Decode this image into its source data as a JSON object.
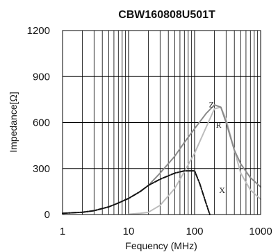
{
  "chart_data": {
    "type": "line",
    "title": "CBW160808U501T",
    "xlabel": "Fequency (MHz)",
    "ylabel": "Impedance[Ω]",
    "xscale": "log",
    "xlim": [
      1,
      1000
    ],
    "ylim": [
      0,
      1200
    ],
    "x_ticks": [
      "1",
      "10",
      "100",
      "1000"
    ],
    "y_ticks": [
      "0",
      "300",
      "600",
      "900",
      "1200"
    ],
    "grid": true,
    "legend": "none (curves labeled directly)",
    "series": [
      {
        "name": "Z",
        "color": "#8a8a8a",
        "style": "solid",
        "x": [
          1,
          2,
          3,
          5,
          7,
          10,
          15,
          20,
          30,
          50,
          70,
          100,
          150,
          200,
          250,
          300,
          400,
          500,
          700,
          1000
        ],
        "y": [
          8,
          15,
          25,
          50,
          75,
          105,
          150,
          190,
          270,
          380,
          470,
          560,
          660,
          715,
          700,
          600,
          420,
          330,
          240,
          180
        ]
      },
      {
        "name": "R",
        "color": "#bcbcbc",
        "style": "solid",
        "x": [
          10,
          15,
          20,
          30,
          50,
          70,
          100,
          150,
          200,
          250,
          300,
          400,
          500,
          700,
          1000
        ],
        "y": [
          2,
          8,
          15,
          60,
          170,
          280,
          400,
          570,
          690,
          700,
          620,
          420,
          270,
          160,
          100
        ]
      },
      {
        "name": "X",
        "color": "#111111",
        "style": "dashed",
        "x": [
          1,
          2,
          3,
          5,
          7,
          10,
          15,
          20,
          30,
          50,
          70,
          100,
          120,
          150,
          170
        ],
        "y": [
          8,
          15,
          25,
          50,
          75,
          105,
          150,
          190,
          230,
          270,
          285,
          285,
          200,
          70,
          0
        ]
      }
    ]
  }
}
